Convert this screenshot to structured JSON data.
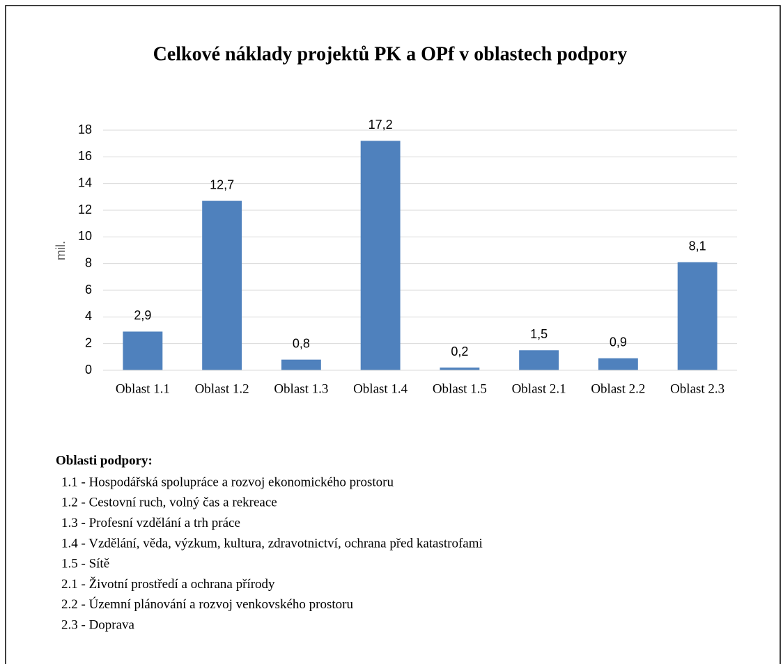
{
  "chart_data": {
    "type": "bar",
    "title": "Celkové náklady projektů PK a OPf v oblastech podpory",
    "ylabel": "mil.",
    "categories": [
      "Oblast 1.1",
      "Oblast 1.2",
      "Oblast 1.3",
      "Oblast 1.4",
      "Oblast 1.5",
      "Oblast 2.1",
      "Oblast 2.2",
      "Oblast 2.3"
    ],
    "values": [
      2.9,
      12.7,
      0.8,
      17.2,
      0.2,
      1.5,
      0.9,
      8.1
    ],
    "value_labels": [
      "2,9",
      "12,7",
      "0,8",
      "17,2",
      "0,2",
      "1,5",
      "0,9",
      "8,1"
    ],
    "color": "#4f81bd",
    "ylim": [
      0,
      18
    ],
    "yticks": [
      0,
      2,
      4,
      6,
      8,
      10,
      12,
      14,
      16,
      18
    ],
    "grid": true,
    "notes": {
      "title": "Oblasti podpory:",
      "items": [
        "1.1 - Hospodářská spolupráce a rozvoj ekonomického prostoru",
        "1.2 - Cestovní ruch, volný čas a rekreace",
        "1.3 - Profesní vzdělání a trh práce",
        "1.4 - Vzdělání, věda, výzkum, kultura, zdravotnictví, ochrana před katastrofami",
        "1.5 - Sítě",
        "2.1 - Životní prostředí a ochrana přírody",
        "2.2 - Územní plánování a rozvoj venkovského prostoru",
        "2.3 - Doprava"
      ]
    }
  }
}
